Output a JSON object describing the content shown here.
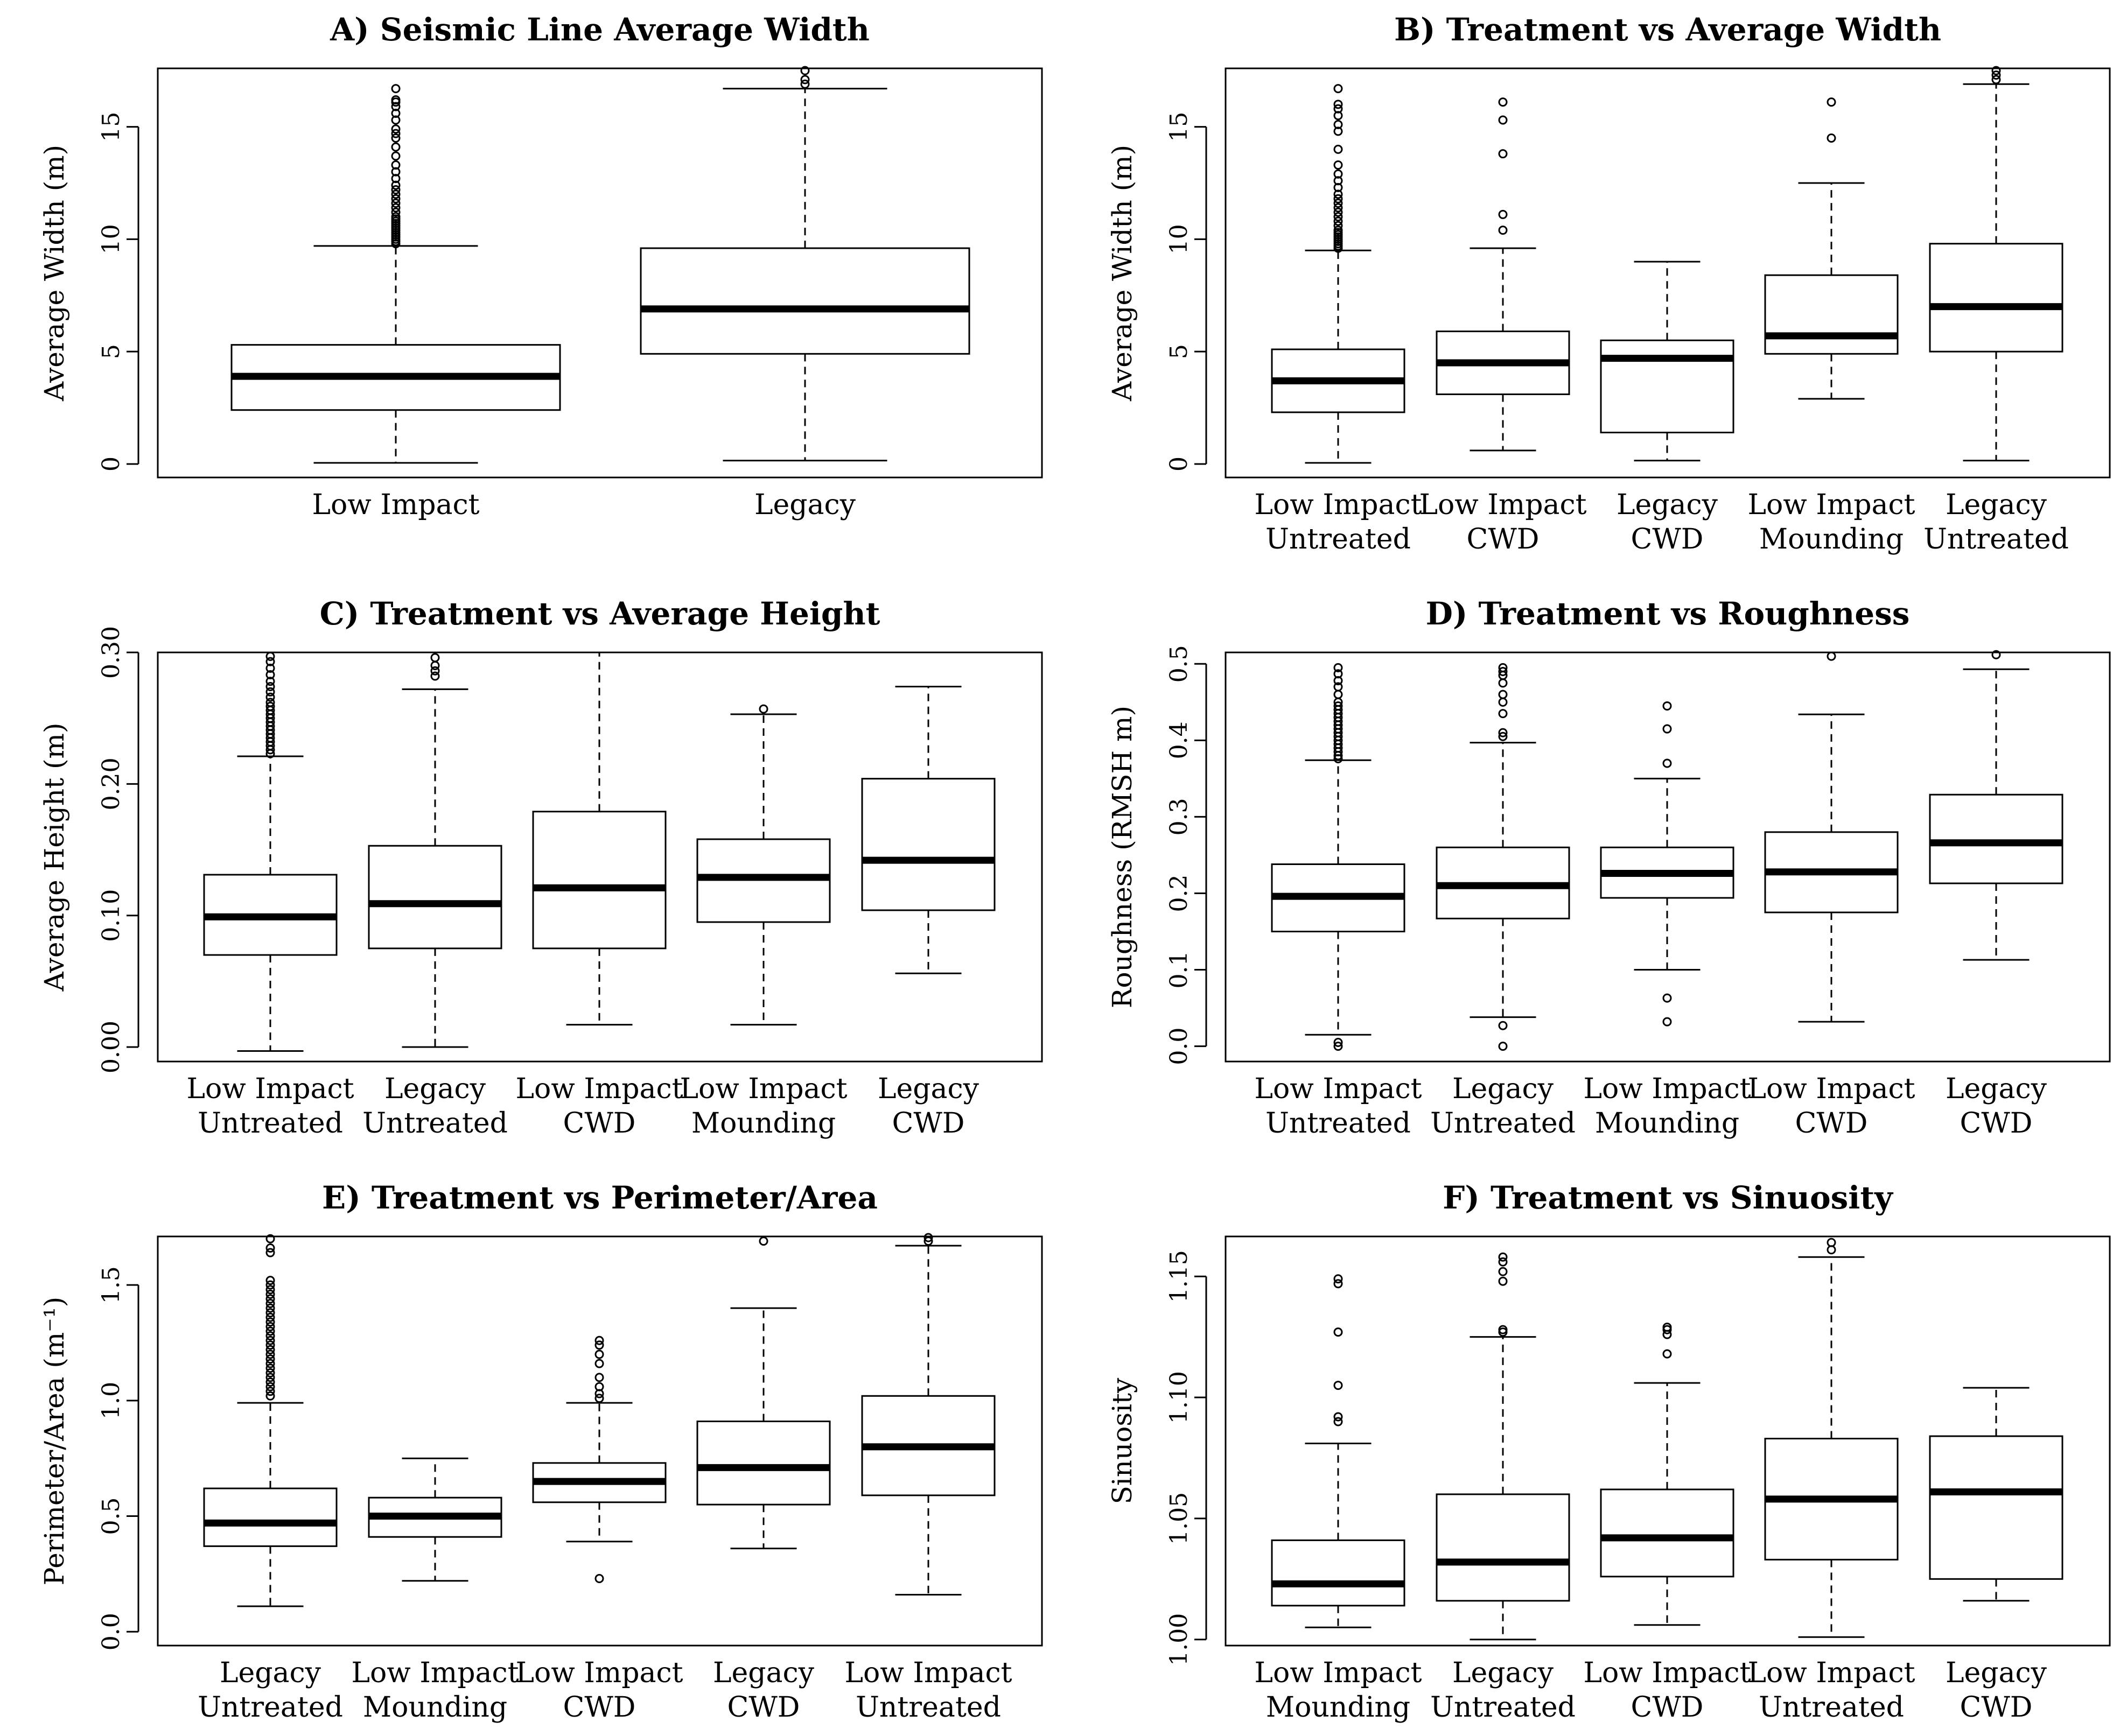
{
  "chart_data": [
    {
      "type": "boxplot",
      "title": "A) Seismic Line Average Width",
      "ylabel": "Average Width (m)",
      "xlabel": "",
      "ylim": [
        -0.6,
        17.6
      ],
      "yticks": [
        0,
        5,
        10,
        15
      ],
      "yticklabels": [
        "0",
        "5",
        "10",
        "15"
      ],
      "categories": [
        [
          "Low Impact"
        ],
        [
          "Legacy"
        ]
      ],
      "boxes": [
        {
          "whisker_low": 0.05,
          "q1": 2.4,
          "median": 3.9,
          "q3": 5.3,
          "whisker_high": 9.7,
          "outliers": [
            9.8,
            9.9,
            10.0,
            10.1,
            10.2,
            10.3,
            10.4,
            10.5,
            10.6,
            10.7,
            10.8,
            10.9,
            11.0,
            11.2,
            11.4,
            11.6,
            11.8,
            12.0,
            12.2,
            12.4,
            12.7,
            13.0,
            13.3,
            13.7,
            14.1,
            14.5,
            14.7,
            14.9,
            15.3,
            15.6,
            15.9,
            16.1,
            16.2,
            16.7
          ]
        },
        {
          "whisker_low": 0.15,
          "q1": 4.9,
          "median": 6.9,
          "q3": 9.6,
          "whisker_high": 16.7,
          "outliers": [
            16.9,
            17.1,
            17.5
          ]
        }
      ]
    },
    {
      "type": "boxplot",
      "title": "B) Treatment vs Average Width",
      "ylabel": "Average Width (m)",
      "xlabel": "",
      "ylim": [
        -0.6,
        17.6
      ],
      "yticks": [
        0,
        5,
        10,
        15
      ],
      "yticklabels": [
        "0",
        "5",
        "10",
        "15"
      ],
      "categories": [
        [
          "Low Impact",
          "Untreated"
        ],
        [
          "Low Impact",
          "CWD"
        ],
        [
          "Legacy",
          "CWD"
        ],
        [
          "Low Impact",
          "Mounding"
        ],
        [
          "Legacy",
          "Untreated"
        ]
      ],
      "boxes": [
        {
          "whisker_low": 0.05,
          "q1": 2.3,
          "median": 3.7,
          "q3": 5.1,
          "whisker_high": 9.5,
          "outliers": [
            9.6,
            9.7,
            9.8,
            9.9,
            10.0,
            10.1,
            10.2,
            10.3,
            10.4,
            10.6,
            10.8,
            11.0,
            11.2,
            11.4,
            11.6,
            11.8,
            12.0,
            12.3,
            12.6,
            12.9,
            13.3,
            14.0,
            14.8,
            15.1,
            15.5,
            15.8,
            16.0,
            16.7
          ]
        },
        {
          "whisker_low": 0.6,
          "q1": 3.1,
          "median": 4.5,
          "q3": 5.9,
          "whisker_high": 9.6,
          "outliers": [
            10.4,
            11.1,
            13.8,
            15.3,
            16.1
          ]
        },
        {
          "whisker_low": 0.15,
          "q1": 1.4,
          "median": 4.7,
          "q3": 5.5,
          "whisker_high": 9.0,
          "outliers": []
        },
        {
          "whisker_low": 2.9,
          "q1": 4.9,
          "median": 5.7,
          "q3": 8.4,
          "whisker_high": 12.5,
          "outliers": [
            14.5,
            16.1
          ]
        },
        {
          "whisker_low": 0.15,
          "q1": 5.0,
          "median": 7.0,
          "q3": 9.8,
          "whisker_high": 16.9,
          "outliers": [
            17.1,
            17.3,
            17.5
          ]
        }
      ]
    },
    {
      "type": "boxplot",
      "title": "C) Treatment vs Average Height",
      "ylabel": "Average Height (m)",
      "xlabel": "",
      "ylim": [
        -0.011,
        0.3
      ],
      "yticks": [
        0.0,
        0.1,
        0.2,
        0.3
      ],
      "yticklabels": [
        "0.00",
        "0.10",
        "0.20",
        "0.30"
      ],
      "categories": [
        [
          "Low Impact",
          "Untreated"
        ],
        [
          "Legacy",
          "Untreated"
        ],
        [
          "Low Impact",
          "CWD"
        ],
        [
          "Low Impact",
          "Mounding"
        ],
        [
          "Legacy",
          "CWD"
        ]
      ],
      "boxes": [
        {
          "whisker_low": -0.003,
          "q1": 0.07,
          "median": 0.099,
          "q3": 0.131,
          "whisker_high": 0.221,
          "outliers": [
            0.223,
            0.226,
            0.229,
            0.232,
            0.235,
            0.238,
            0.241,
            0.244,
            0.247,
            0.25,
            0.253,
            0.256,
            0.259,
            0.262,
            0.266,
            0.27,
            0.274,
            0.278,
            0.283,
            0.288,
            0.293,
            0.297
          ]
        },
        {
          "whisker_low": 0.0,
          "q1": 0.075,
          "median": 0.109,
          "q3": 0.153,
          "whisker_high": 0.272,
          "outliers": [
            0.282,
            0.286,
            0.29,
            0.296
          ]
        },
        {
          "whisker_low": 0.017,
          "q1": 0.075,
          "median": 0.121,
          "q3": 0.179,
          "whisker_high": 0.3,
          "outliers": []
        },
        {
          "whisker_low": 0.017,
          "q1": 0.095,
          "median": 0.129,
          "q3": 0.158,
          "whisker_high": 0.253,
          "outliers": [
            0.257
          ]
        },
        {
          "whisker_low": 0.056,
          "q1": 0.104,
          "median": 0.142,
          "q3": 0.204,
          "whisker_high": 0.274,
          "outliers": []
        }
      ]
    },
    {
      "type": "boxplot",
      "title": "D) Treatment vs Roughness",
      "ylabel": "Roughness (RMSH m)",
      "xlabel": "",
      "ylim": [
        -0.02,
        0.515
      ],
      "yticks": [
        0.0,
        0.1,
        0.2,
        0.3,
        0.4,
        0.5
      ],
      "yticklabels": [
        "0.0",
        "0.1",
        "0.2",
        "0.3",
        "0.4",
        "0.5"
      ],
      "categories": [
        [
          "Low Impact",
          "Untreated"
        ],
        [
          "Legacy",
          "Untreated"
        ],
        [
          "Low Impact",
          "Mounding"
        ],
        [
          "Low Impact",
          "CWD"
        ],
        [
          "Legacy",
          "CWD"
        ]
      ],
      "boxes": [
        {
          "whisker_low": 0.015,
          "q1": 0.15,
          "median": 0.196,
          "q3": 0.238,
          "whisker_high": 0.374,
          "outliers": [
            0.0,
            0.005,
            0.376,
            0.38,
            0.385,
            0.39,
            0.395,
            0.4,
            0.405,
            0.41,
            0.415,
            0.42,
            0.425,
            0.43,
            0.435,
            0.44,
            0.445,
            0.45,
            0.46,
            0.47,
            0.478,
            0.487,
            0.495
          ]
        },
        {
          "whisker_low": 0.038,
          "q1": 0.167,
          "median": 0.21,
          "q3": 0.26,
          "whisker_high": 0.397,
          "outliers": [
            0.0,
            0.027,
            0.405,
            0.41,
            0.435,
            0.45,
            0.46,
            0.475,
            0.485,
            0.49,
            0.495
          ]
        },
        {
          "whisker_low": 0.1,
          "q1": 0.194,
          "median": 0.226,
          "q3": 0.26,
          "whisker_high": 0.35,
          "outliers": [
            0.032,
            0.063,
            0.37,
            0.415,
            0.445
          ]
        },
        {
          "whisker_low": 0.032,
          "q1": 0.175,
          "median": 0.228,
          "q3": 0.28,
          "whisker_high": 0.434,
          "outliers": [
            0.51
          ]
        },
        {
          "whisker_low": 0.113,
          "q1": 0.213,
          "median": 0.266,
          "q3": 0.329,
          "whisker_high": 0.493,
          "outliers": [
            0.512
          ]
        }
      ]
    },
    {
      "type": "boxplot",
      "title": "E) Treatment vs Perimeter/Area",
      "ylabel": "Perimeter/Area (m⁻¹)",
      "xlabel": "",
      "ylim": [
        -0.06,
        1.71
      ],
      "yticks": [
        0.0,
        0.5,
        1.0,
        1.5
      ],
      "yticklabels": [
        "0.0",
        "0.5",
        "1.0",
        "1.5"
      ],
      "categories": [
        [
          "Legacy",
          "Untreated"
        ],
        [
          "Low Impact",
          "Mounding"
        ],
        [
          "Low Impact",
          "CWD"
        ],
        [
          "Legacy",
          "CWD"
        ],
        [
          "Low Impact",
          "Untreated"
        ]
      ],
      "boxes": [
        {
          "whisker_low": 0.11,
          "q1": 0.37,
          "median": 0.47,
          "q3": 0.62,
          "whisker_high": 0.99,
          "outliers": [
            1.02,
            1.04,
            1.06,
            1.08,
            1.1,
            1.12,
            1.14,
            1.16,
            1.18,
            1.2,
            1.22,
            1.24,
            1.26,
            1.28,
            1.3,
            1.32,
            1.34,
            1.36,
            1.38,
            1.4,
            1.42,
            1.44,
            1.46,
            1.48,
            1.5,
            1.52,
            1.64,
            1.66,
            1.7
          ]
        },
        {
          "whisker_low": 0.22,
          "q1": 0.41,
          "median": 0.5,
          "q3": 0.58,
          "whisker_high": 0.75,
          "outliers": []
        },
        {
          "whisker_low": 0.39,
          "q1": 0.56,
          "median": 0.65,
          "q3": 0.73,
          "whisker_high": 0.99,
          "outliers": [
            0.23,
            1.01,
            1.03,
            1.06,
            1.1,
            1.16,
            1.2,
            1.24,
            1.26
          ]
        },
        {
          "whisker_low": 0.36,
          "q1": 0.55,
          "median": 0.71,
          "q3": 0.91,
          "whisker_high": 1.4,
          "outliers": [
            1.69
          ]
        },
        {
          "whisker_low": 0.16,
          "q1": 0.59,
          "median": 0.8,
          "q3": 1.02,
          "whisker_high": 1.67,
          "outliers": [
            1.69,
            1.705
          ]
        }
      ]
    },
    {
      "type": "boxplot",
      "title": "F) Treatment vs Sinuosity",
      "ylabel": "Sinuosity",
      "xlabel": "",
      "ylim": [
        0.9975,
        1.1665
      ],
      "yticks": [
        1.0,
        1.05,
        1.1,
        1.15
      ],
      "yticklabels": [
        "1.00",
        "1.05",
        "1.10",
        "1.15"
      ],
      "categories": [
        [
          "Low Impact",
          "Mounding"
        ],
        [
          "Legacy",
          "Untreated"
        ],
        [
          "Low Impact",
          "CWD"
        ],
        [
          "Low Impact",
          "Untreated"
        ],
        [
          "Legacy",
          "CWD"
        ]
      ],
      "boxes": [
        {
          "whisker_low": 1.005,
          "q1": 1.014,
          "median": 1.023,
          "q3": 1.041,
          "whisker_high": 1.081,
          "outliers": [
            1.09,
            1.092,
            1.105,
            1.127,
            1.147,
            1.149
          ]
        },
        {
          "whisker_low": 1.0,
          "q1": 1.016,
          "median": 1.032,
          "q3": 1.06,
          "whisker_high": 1.125,
          "outliers": [
            1.127,
            1.128,
            1.148,
            1.152,
            1.156,
            1.158
          ]
        },
        {
          "whisker_low": 1.006,
          "q1": 1.026,
          "median": 1.042,
          "q3": 1.062,
          "whisker_high": 1.106,
          "outliers": [
            1.118,
            1.126,
            1.128,
            1.129
          ]
        },
        {
          "whisker_low": 1.001,
          "q1": 1.033,
          "median": 1.058,
          "q3": 1.083,
          "whisker_high": 1.158,
          "outliers": [
            1.161,
            1.164
          ]
        },
        {
          "whisker_low": 1.016,
          "q1": 1.025,
          "median": 1.061,
          "q3": 1.084,
          "whisker_high": 1.104,
          "outliers": []
        }
      ]
    }
  ]
}
